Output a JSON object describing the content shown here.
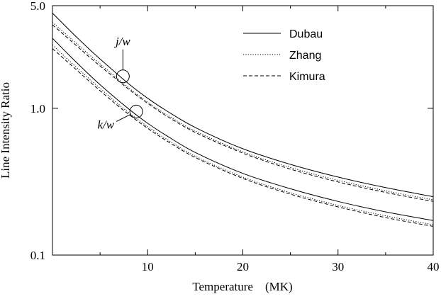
{
  "chart_data": {
    "type": "line",
    "xlabel": "Temperature    (MK)",
    "ylabel": "Line Intensity Ratio",
    "xlim": [
      0,
      40
    ],
    "ylim": [
      0.1,
      5.0
    ],
    "yscale": "log",
    "x_ticks": [
      {
        "value": 10,
        "label": "10"
      },
      {
        "value": 20,
        "label": "20"
      },
      {
        "value": 30,
        "label": "30"
      },
      {
        "value": 40,
        "label": "40"
      }
    ],
    "y_ticks": [
      {
        "value": 0.1,
        "label": "0.1"
      },
      {
        "value": 1.0,
        "label": "1.0"
      },
      {
        "value": 5.0,
        "label": "5.0"
      }
    ],
    "grid": false,
    "legend_position": "top-right",
    "legend": [
      {
        "name": "Dubau",
        "dash": "solid"
      },
      {
        "name": "Zhang",
        "dash": "dotted"
      },
      {
        "name": "Kimura",
        "dash": "dashed"
      }
    ],
    "annotations": [
      {
        "text": "j/w",
        "x": 7.4,
        "y": 1.65
      },
      {
        "text": "k/w",
        "x": 8.8,
        "y": 0.95
      }
    ],
    "series": [
      {
        "name": "Dubau",
        "group": "j/w",
        "dash": "solid",
        "x": [
          0,
          2,
          4,
          6,
          8,
          10,
          12,
          15,
          20,
          25,
          30,
          35,
          40
        ],
        "y": [
          4.45,
          3.3,
          2.48,
          1.9,
          1.47,
          1.17,
          0.96,
          0.74,
          0.53,
          0.415,
          0.34,
          0.288,
          0.25
        ]
      },
      {
        "name": "Zhang",
        "group": "j/w",
        "dash": "dotted",
        "x": [
          0,
          2,
          4,
          6,
          8,
          10,
          12,
          15,
          20,
          25,
          30,
          35,
          40
        ],
        "y": [
          3.85,
          2.96,
          2.28,
          1.77,
          1.38,
          1.1,
          0.905,
          0.7,
          0.505,
          0.395,
          0.323,
          0.274,
          0.238
        ]
      },
      {
        "name": "Kimura",
        "group": "j/w",
        "dash": "dashed",
        "x": [
          0,
          2,
          4,
          6,
          8,
          10,
          12,
          15,
          20,
          25,
          30,
          35,
          40
        ],
        "y": [
          3.7,
          2.86,
          2.2,
          1.72,
          1.35,
          1.08,
          0.885,
          0.685,
          0.495,
          0.385,
          0.315,
          0.267,
          0.232
        ]
      },
      {
        "name": "Dubau",
        "group": "k/w",
        "dash": "solid",
        "x": [
          0,
          2,
          4,
          6,
          8,
          10,
          12,
          15,
          20,
          25,
          30,
          35,
          40
        ],
        "y": [
          3.0,
          2.22,
          1.66,
          1.27,
          0.99,
          0.79,
          0.65,
          0.5,
          0.36,
          0.283,
          0.232,
          0.197,
          0.172
        ]
      },
      {
        "name": "Zhang",
        "group": "k/w",
        "dash": "dotted",
        "x": [
          0,
          2,
          4,
          6,
          8,
          10,
          12,
          15,
          20,
          25,
          30,
          35,
          40
        ],
        "y": [
          2.7,
          2.04,
          1.56,
          1.2,
          0.935,
          0.75,
          0.615,
          0.472,
          0.34,
          0.266,
          0.218,
          0.185,
          0.161
        ]
      },
      {
        "name": "Kimura",
        "group": "k/w",
        "dash": "dashed",
        "x": [
          0,
          2,
          4,
          6,
          8,
          10,
          12,
          15,
          20,
          25,
          30,
          35,
          40
        ],
        "y": [
          2.55,
          1.96,
          1.5,
          1.16,
          0.91,
          0.73,
          0.6,
          0.462,
          0.333,
          0.26,
          0.213,
          0.18,
          0.157
        ]
      }
    ]
  }
}
